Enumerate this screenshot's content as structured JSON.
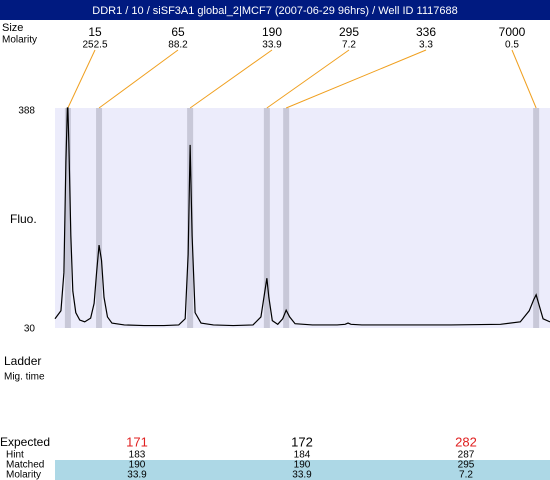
{
  "header": {
    "title": "DDR1 / 10 / siSF3A1 global_2|MCF7 (2007-06-29 96hrs) / Well ID 1117688"
  },
  "peak_labels": {
    "size": "Size",
    "molarity": "Molarity"
  },
  "peaks": [
    {
      "size": 15,
      "molarity": 252.5,
      "x": 2.6
    },
    {
      "size": 65,
      "molarity": 88.2,
      "x": 8.9
    },
    {
      "size": 190,
      "molarity": 33.9,
      "x": 27.3
    },
    {
      "size": 295,
      "molarity": 7.2,
      "x": 42.8
    },
    {
      "size": 336,
      "molarity": 3.3,
      "x": 46.7
    },
    {
      "size": 7000,
      "molarity": 0.5,
      "x": 97.2
    }
  ],
  "chart_data": {
    "type": "line",
    "ylabel": "Fluo.",
    "xlim": [
      0,
      100
    ],
    "ylim": [
      30,
      388
    ],
    "yticks": [
      30,
      388
    ],
    "color": "#000000",
    "x": [
      0,
      1.2,
      1.8,
      2.2,
      2.5,
      2.6,
      2.8,
      3.2,
      3.6,
      4.2,
      5.0,
      6.0,
      7.2,
      7.9,
      8.4,
      8.9,
      9.4,
      9.9,
      10.6,
      11.5,
      14,
      18,
      22,
      25,
      26.3,
      26.9,
      27.3,
      27.7,
      28.3,
      29.5,
      32,
      36,
      40,
      41.6,
      42.4,
      42.8,
      43.2,
      43.9,
      45.0,
      46.0,
      46.7,
      47.4,
      48.5,
      52,
      57,
      58.6,
      59.2,
      59.8,
      62,
      70,
      80,
      90,
      94,
      95.8,
      96.7,
      97.2,
      97.7,
      98.6,
      100
    ],
    "y": [
      45,
      58,
      120,
      300,
      388,
      388,
      330,
      180,
      90,
      55,
      43,
      40,
      46,
      70,
      120,
      165,
      140,
      80,
      48,
      38,
      35,
      34,
      34,
      35,
      45,
      150,
      328,
      180,
      55,
      38,
      35,
      34,
      35,
      48,
      90,
      111,
      80,
      42,
      36,
      45,
      59,
      48,
      37,
      35,
      35,
      36,
      38,
      36,
      35,
      35,
      35,
      36,
      40,
      58,
      76,
      84,
      70,
      45,
      40
    ]
  },
  "bottom_labels": {
    "ladder": "Ladder",
    "mig_time": "Mig. time"
  },
  "table": {
    "labels": [
      "Expected",
      "Hint",
      "Matched",
      "Molarity"
    ],
    "columns": [
      [
        "171",
        "183",
        "190",
        "33.9"
      ],
      [
        "172",
        "184",
        "190",
        "33.9"
      ],
      [
        "282",
        "287",
        "295",
        "7.2"
      ]
    ]
  }
}
